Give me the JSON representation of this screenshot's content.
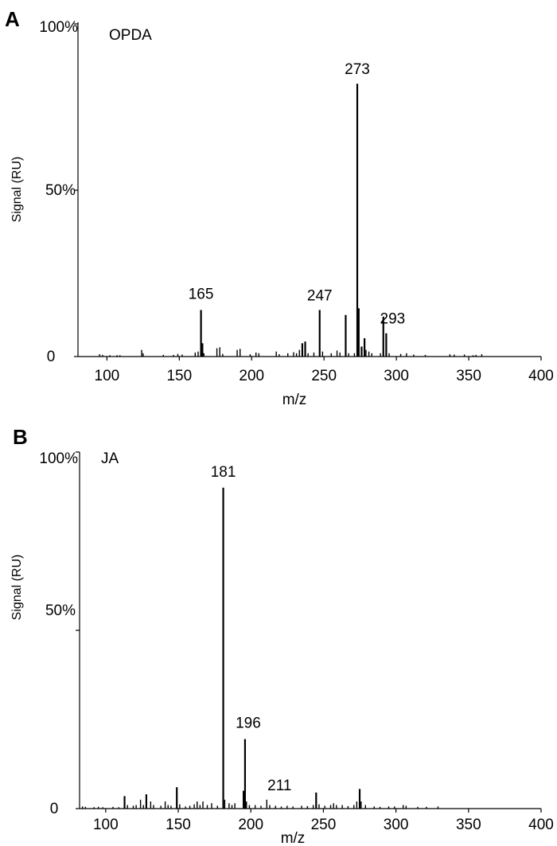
{
  "chart_data": [
    {
      "panel": "A",
      "type": "bar",
      "annotation": "OPDA",
      "xlabel": "m/z",
      "ylabel": "Signal (RU)",
      "xlim": [
        80,
        400
      ],
      "ylim": [
        0,
        100
      ],
      "x_ticks": [
        100,
        150,
        200,
        250,
        300,
        350,
        400
      ],
      "y_tick_labels": [
        "0",
        "50%",
        "100%"
      ],
      "y_tick_values": [
        0,
        50,
        100
      ],
      "peak_labels": [
        {
          "text": "165",
          "x": 165
        },
        {
          "text": "247",
          "x": 247
        },
        {
          "text": "273",
          "x": 273
        },
        {
          "text": "293",
          "x": 293
        }
      ],
      "peaks": [
        {
          "x": 95,
          "y": 0.7
        },
        {
          "x": 97,
          "y": 0.5
        },
        {
          "x": 102,
          "y": 0.4
        },
        {
          "x": 107,
          "y": 0.4
        },
        {
          "x": 109,
          "y": 0.4
        },
        {
          "x": 124,
          "y": 2.0
        },
        {
          "x": 125,
          "y": 1.0
        },
        {
          "x": 139,
          "y": 0.5
        },
        {
          "x": 146,
          "y": 0.5
        },
        {
          "x": 149,
          "y": 0.8
        },
        {
          "x": 152,
          "y": 0.6
        },
        {
          "x": 161,
          "y": 1.2
        },
        {
          "x": 163,
          "y": 1.5
        },
        {
          "x": 165,
          "y": 14.0
        },
        {
          "x": 166,
          "y": 4.0
        },
        {
          "x": 167,
          "y": 1.0
        },
        {
          "x": 176,
          "y": 2.5
        },
        {
          "x": 178,
          "y": 2.8
        },
        {
          "x": 180,
          "y": 0.8
        },
        {
          "x": 190,
          "y": 2.0
        },
        {
          "x": 192,
          "y": 2.3
        },
        {
          "x": 199,
          "y": 0.7
        },
        {
          "x": 203,
          "y": 1.2
        },
        {
          "x": 205,
          "y": 1.0
        },
        {
          "x": 217,
          "y": 1.5
        },
        {
          "x": 219,
          "y": 0.7
        },
        {
          "x": 225,
          "y": 1.0
        },
        {
          "x": 229,
          "y": 1.3
        },
        {
          "x": 231,
          "y": 1.0
        },
        {
          "x": 233,
          "y": 2.0
        },
        {
          "x": 235,
          "y": 4.0
        },
        {
          "x": 237,
          "y": 4.5
        },
        {
          "x": 239,
          "y": 1.0
        },
        {
          "x": 243,
          "y": 1.2
        },
        {
          "x": 247,
          "y": 14.0
        },
        {
          "x": 249,
          "y": 1.5
        },
        {
          "x": 255,
          "y": 1.0
        },
        {
          "x": 259,
          "y": 1.8
        },
        {
          "x": 261,
          "y": 1.2
        },
        {
          "x": 265,
          "y": 12.5
        },
        {
          "x": 267,
          "y": 1.0
        },
        {
          "x": 271,
          "y": 1.0
        },
        {
          "x": 273,
          "y": 82.0
        },
        {
          "x": 274,
          "y": 14.5
        },
        {
          "x": 276,
          "y": 3.0
        },
        {
          "x": 278,
          "y": 5.5
        },
        {
          "x": 279,
          "y": 2.0
        },
        {
          "x": 281,
          "y": 1.5
        },
        {
          "x": 283,
          "y": 1.0
        },
        {
          "x": 289,
          "y": 1.0
        },
        {
          "x": 291,
          "y": 12.0
        },
        {
          "x": 293,
          "y": 7.0
        },
        {
          "x": 295,
          "y": 1.0
        },
        {
          "x": 303,
          "y": 0.8
        },
        {
          "x": 307,
          "y": 1.0
        },
        {
          "x": 312,
          "y": 0.6
        },
        {
          "x": 320,
          "y": 0.5
        },
        {
          "x": 337,
          "y": 0.7
        },
        {
          "x": 340,
          "y": 0.6
        },
        {
          "x": 347,
          "y": 0.6
        },
        {
          "x": 353,
          "y": 0.4
        },
        {
          "x": 355,
          "y": 0.5
        },
        {
          "x": 359,
          "y": 0.7
        }
      ]
    },
    {
      "panel": "B",
      "type": "bar",
      "annotation": "JA",
      "xlabel": "m/z",
      "ylabel": "Signal (RU)",
      "xlim": [
        82,
        400
      ],
      "ylim": [
        0,
        100
      ],
      "x_ticks": [
        100,
        150,
        200,
        250,
        300,
        350,
        400
      ],
      "y_tick_labels": [
        "0",
        "50%",
        "100%"
      ],
      "y_tick_values": [
        0,
        50,
        100
      ],
      "peak_labels": [
        {
          "text": "181",
          "x": 181
        },
        {
          "text": "196",
          "x": 196
        },
        {
          "text": "211",
          "x": 211
        }
      ],
      "peaks": [
        {
          "x": 84,
          "y": 0.6
        },
        {
          "x": 86,
          "y": 0.5
        },
        {
          "x": 92,
          "y": 0.4
        },
        {
          "x": 95,
          "y": 0.5
        },
        {
          "x": 98,
          "y": 0.4
        },
        {
          "x": 105,
          "y": 0.5
        },
        {
          "x": 109,
          "y": 0.4
        },
        {
          "x": 113,
          "y": 3.5
        },
        {
          "x": 115,
          "y": 1.0
        },
        {
          "x": 119,
          "y": 0.8
        },
        {
          "x": 121,
          "y": 1.0
        },
        {
          "x": 124,
          "y": 2.5
        },
        {
          "x": 126,
          "y": 1.0
        },
        {
          "x": 128,
          "y": 4.0
        },
        {
          "x": 131,
          "y": 2.0
        },
        {
          "x": 133,
          "y": 1.0
        },
        {
          "x": 138,
          "y": 0.8
        },
        {
          "x": 141,
          "y": 2.0
        },
        {
          "x": 143,
          "y": 1.0
        },
        {
          "x": 145,
          "y": 0.8
        },
        {
          "x": 149,
          "y": 6.0
        },
        {
          "x": 151,
          "y": 1.2
        },
        {
          "x": 155,
          "y": 0.6
        },
        {
          "x": 158,
          "y": 0.8
        },
        {
          "x": 161,
          "y": 1.2
        },
        {
          "x": 163,
          "y": 2.0
        },
        {
          "x": 165,
          "y": 1.0
        },
        {
          "x": 167,
          "y": 2.0
        },
        {
          "x": 170,
          "y": 1.0
        },
        {
          "x": 173,
          "y": 1.5
        },
        {
          "x": 177,
          "y": 0.8
        },
        {
          "x": 181,
          "y": 90.0
        },
        {
          "x": 182,
          "y": 2.5
        },
        {
          "x": 185,
          "y": 1.5
        },
        {
          "x": 187,
          "y": 1.0
        },
        {
          "x": 189,
          "y": 1.5
        },
        {
          "x": 195,
          "y": 5.0
        },
        {
          "x": 196,
          "y": 19.5
        },
        {
          "x": 197,
          "y": 2.0
        },
        {
          "x": 199,
          "y": 1.0
        },
        {
          "x": 203,
          "y": 1.0
        },
        {
          "x": 207,
          "y": 0.8
        },
        {
          "x": 211,
          "y": 2.5
        },
        {
          "x": 213,
          "y": 1.0
        },
        {
          "x": 217,
          "y": 0.8
        },
        {
          "x": 221,
          "y": 0.6
        },
        {
          "x": 225,
          "y": 0.8
        },
        {
          "x": 229,
          "y": 0.6
        },
        {
          "x": 235,
          "y": 0.8
        },
        {
          "x": 239,
          "y": 0.7
        },
        {
          "x": 243,
          "y": 1.0
        },
        {
          "x": 245,
          "y": 4.5
        },
        {
          "x": 247,
          "y": 1.2
        },
        {
          "x": 251,
          "y": 0.8
        },
        {
          "x": 255,
          "y": 1.0
        },
        {
          "x": 257,
          "y": 1.5
        },
        {
          "x": 259,
          "y": 1.0
        },
        {
          "x": 263,
          "y": 1.0
        },
        {
          "x": 267,
          "y": 0.7
        },
        {
          "x": 271,
          "y": 1.0
        },
        {
          "x": 273,
          "y": 2.0
        },
        {
          "x": 275,
          "y": 5.5
        },
        {
          "x": 276,
          "y": 2.0
        },
        {
          "x": 279,
          "y": 1.0
        },
        {
          "x": 285,
          "y": 0.6
        },
        {
          "x": 289,
          "y": 0.5
        },
        {
          "x": 295,
          "y": 0.6
        },
        {
          "x": 299,
          "y": 0.6
        },
        {
          "x": 305,
          "y": 1.0
        },
        {
          "x": 307,
          "y": 0.8
        },
        {
          "x": 315,
          "y": 0.5
        },
        {
          "x": 321,
          "y": 0.5
        },
        {
          "x": 329,
          "y": 0.6
        }
      ]
    }
  ]
}
